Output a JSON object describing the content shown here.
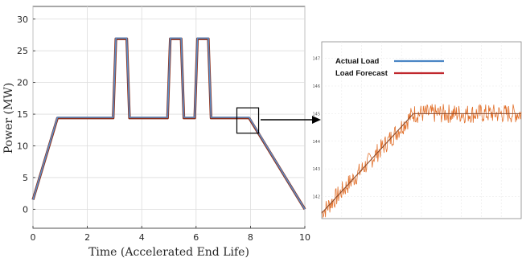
{
  "chart_data": [
    {
      "type": "line",
      "xlabel": "Time (Accelerated End Life)",
      "ylabel": "Power (MW)",
      "xlim": [
        0,
        10
      ],
      "ylim": [
        -3,
        32
      ],
      "xticks": [
        "0",
        "2",
        "4",
        "6",
        "8",
        "10"
      ],
      "yticks": [
        "0",
        "5",
        "10",
        "15",
        "20",
        "25",
        "30"
      ],
      "grid": true,
      "series": [
        {
          "name": "Load Forecast",
          "color": "#8b2e1a",
          "x": [
            0,
            0.9,
            2.95,
            3.05,
            3.45,
            3.55,
            4.95,
            5.05,
            5.45,
            5.55,
            5.95,
            6.05,
            6.45,
            6.55,
            7.95,
            10
          ],
          "y": [
            1.5,
            14.4,
            14.4,
            26.9,
            26.9,
            14.4,
            14.4,
            26.9,
            26.9,
            14.4,
            14.4,
            26.9,
            26.9,
            14.4,
            14.4,
            0
          ]
        },
        {
          "name": "Actual Load",
          "color": "#5b8fc9",
          "x": [
            0,
            0.9,
            2.95,
            3.05,
            3.45,
            3.55,
            4.95,
            5.05,
            5.45,
            5.55,
            5.95,
            6.05,
            6.45,
            6.55,
            7.95,
            10
          ],
          "y": [
            1.5,
            14.5,
            14.5,
            27.0,
            27.0,
            14.5,
            14.5,
            27.0,
            27.0,
            14.5,
            14.5,
            27.0,
            27.0,
            14.5,
            14.5,
            0
          ]
        }
      ],
      "zoom_box": {
        "x": [
          7.5,
          8.3
        ],
        "y": [
          12,
          16
        ]
      }
    },
    {
      "type": "line",
      "legend": [
        "Actual Load",
        "Load Forecast"
      ],
      "legend_colors": [
        "#4a86c5",
        "#c0272d"
      ],
      "legend_position": "top-left",
      "yticks": [
        "147",
        "146",
        "145",
        "144",
        "143",
        "142"
      ],
      "xlim": [
        0,
        10
      ],
      "ylim": [
        141.2,
        147.6
      ],
      "grid": true,
      "series": [
        {
          "name": "Actual Load",
          "color": "#8b4a2a",
          "x": [
            0,
            4.6,
            10
          ],
          "y": [
            141.4,
            145.0,
            145.0
          ]
        },
        {
          "name": "Load Forecast",
          "color": "#e2722e",
          "noisy": true,
          "x": [
            0,
            4.6,
            10
          ],
          "y": [
            141.4,
            145.0,
            145.0
          ],
          "noise_amplitude": 0.35
        }
      ]
    }
  ]
}
